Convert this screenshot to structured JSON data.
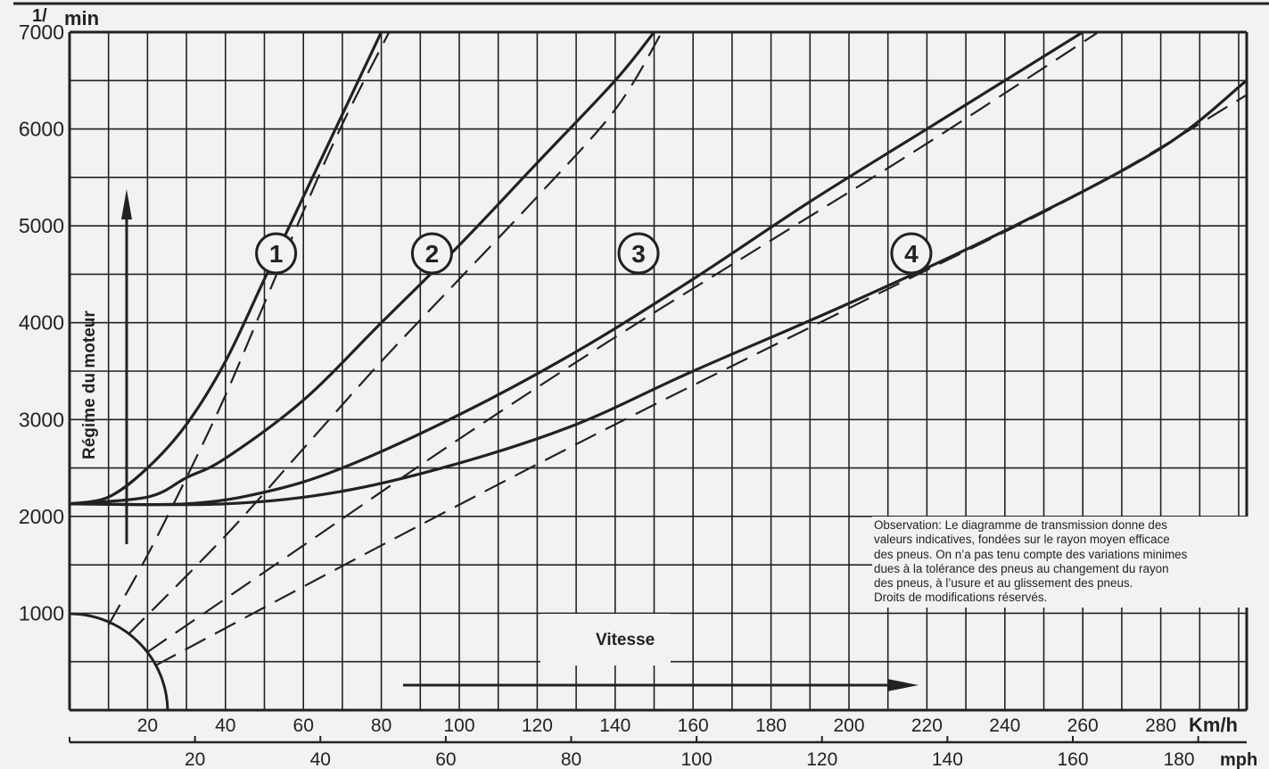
{
  "chart_data": {
    "type": "line",
    "title": "",
    "xlabel": "Vitesse",
    "ylabel": "Régime du moteur",
    "y_unit": "1/min",
    "x_unit_primary": "Km/h",
    "x_unit_secondary": "mph",
    "xlim": [
      0,
      302
    ],
    "ylim": [
      0,
      7000
    ],
    "grid": true,
    "y_ticks": [
      1000,
      2000,
      3000,
      4000,
      5000,
      6000,
      7000
    ],
    "x_ticks_kmh": [
      20,
      40,
      60,
      80,
      100,
      120,
      140,
      160,
      180,
      200,
      220,
      240,
      260,
      280
    ],
    "x_ticks_mph": [
      20,
      40,
      60,
      80,
      100,
      120,
      140,
      160,
      180
    ],
    "series": [
      {
        "name": "1",
        "style": "solid",
        "points": [
          [
            0,
            2130
          ],
          [
            10,
            2200
          ],
          [
            20,
            2500
          ],
          [
            30,
            2950
          ],
          [
            40,
            3600
          ],
          [
            50,
            4450
          ],
          [
            60,
            5300
          ],
          [
            70,
            6150
          ],
          [
            80,
            7000
          ]
        ]
      },
      {
        "name": "1",
        "style": "dashed",
        "points": [
          [
            10,
            880
          ],
          [
            20,
            1600
          ],
          [
            30,
            2400
          ],
          [
            40,
            3250
          ],
          [
            50,
            4200
          ],
          [
            60,
            5150
          ],
          [
            70,
            6050
          ],
          [
            82,
            7000
          ]
        ]
      },
      {
        "name": "2",
        "style": "solid",
        "points": [
          [
            0,
            2130
          ],
          [
            20,
            2200
          ],
          [
            30,
            2400
          ],
          [
            40,
            2600
          ],
          [
            60,
            3200
          ],
          [
            80,
            4000
          ],
          [
            100,
            4800
          ],
          [
            120,
            5650
          ],
          [
            140,
            6500
          ],
          [
            150,
            7000
          ]
        ]
      },
      {
        "name": "2",
        "style": "dashed",
        "points": [
          [
            15,
            780
          ],
          [
            40,
            1800
          ],
          [
            60,
            2700
          ],
          [
            80,
            3600
          ],
          [
            100,
            4450
          ],
          [
            120,
            5300
          ],
          [
            140,
            6200
          ],
          [
            152,
            7000
          ]
        ]
      },
      {
        "name": "3",
        "style": "solid",
        "points": [
          [
            0,
            2130
          ],
          [
            30,
            2130
          ],
          [
            50,
            2250
          ],
          [
            70,
            2500
          ],
          [
            100,
            3050
          ],
          [
            130,
            3700
          ],
          [
            160,
            4450
          ],
          [
            190,
            5250
          ],
          [
            220,
            6000
          ],
          [
            260,
            7000
          ]
        ]
      },
      {
        "name": "3",
        "style": "dashed",
        "points": [
          [
            20,
            600
          ],
          [
            60,
            1700
          ],
          [
            100,
            2800
          ],
          [
            140,
            3850
          ],
          [
            180,
            4850
          ],
          [
            220,
            5850
          ],
          [
            264,
            7000
          ]
        ]
      },
      {
        "name": "4",
        "style": "solid",
        "points": [
          [
            0,
            2130
          ],
          [
            40,
            2130
          ],
          [
            70,
            2260
          ],
          [
            100,
            2550
          ],
          [
            130,
            2950
          ],
          [
            160,
            3500
          ],
          [
            200,
            4200
          ],
          [
            240,
            4950
          ],
          [
            280,
            5800
          ],
          [
            302,
            6500
          ]
        ]
      },
      {
        "name": "4",
        "style": "dashed",
        "points": [
          [
            22,
            460
          ],
          [
            80,
            1700
          ],
          [
            140,
            2950
          ],
          [
            200,
            4150
          ],
          [
            260,
            5350
          ],
          [
            302,
            6350
          ]
        ]
      }
    ],
    "gear_markers": [
      {
        "label": "1",
        "x_kmh": 53,
        "y": 4650
      },
      {
        "label": "2",
        "x_kmh": 93,
        "y": 4650
      },
      {
        "label": "3",
        "x_kmh": 146,
        "y": 4650
      },
      {
        "label": "4",
        "x_kmh": 216,
        "y": 4650
      }
    ],
    "annotations": [
      "Observation: Le diagramme de transmission donne des valeurs indicatives, fondées sur le rayon moyen efficace des pneus. On n’a pas tenu compte des variations minimes dues à la tolérance des pneus au changement du rayon des pneus, à l’usure et au glissement des pneus. Droits de modifications réservés."
    ]
  },
  "labels": {
    "y_unit_num": "1/",
    "y_unit_den": "min",
    "y_axis_title": "Régime du moteur",
    "x_axis_title": "Vitesse",
    "kmh_unit": "Km/h",
    "mph_unit": "mph"
  },
  "note": {
    "lines": [
      "Observation: Le diagramme de transmission donne des",
      "valeurs indicatives, fondées sur le rayon moyen efficace",
      "des pneus. On n’a pas tenu compte des variations minimes",
      "dues à la tolérance des pneus au changement du rayon",
      "des pneus, à l’usure et au glissement des pneus.",
      "Droits de modifications réservés."
    ]
  },
  "colors": {
    "ink": "#222222",
    "paper": "#f2f2f0"
  }
}
